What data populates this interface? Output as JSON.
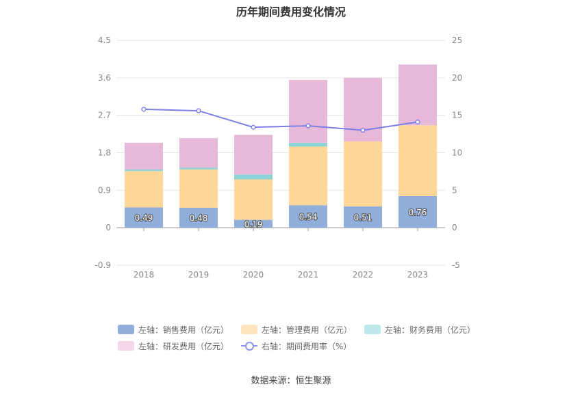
{
  "chart_data": {
    "type": "bar",
    "title": "历年期间费用变化情况",
    "categories": [
      "2018",
      "2019",
      "2020",
      "2021",
      "2022",
      "2023"
    ],
    "left_axis": {
      "ticks": [
        "4.5",
        "3.6",
        "2.7",
        "1.8",
        "0.9",
        "0",
        "-0.9"
      ],
      "ylim": [
        -0.9,
        4.5
      ]
    },
    "right_axis": {
      "ticks": [
        "25",
        "20",
        "15",
        "10",
        "5",
        "0",
        "-5"
      ],
      "ylim": [
        -5,
        25
      ]
    },
    "series": [
      {
        "name": "左轴：销售费用（亿元）",
        "type": "bar",
        "axis": "left",
        "color": "#8faedc",
        "values": [
          0.49,
          0.48,
          0.19,
          0.54,
          0.51,
          0.76
        ],
        "labels": [
          "0.49",
          "0.48",
          "0.19",
          "0.54",
          "0.51",
          "0.76"
        ]
      },
      {
        "name": "左轴：管理费用（亿元）",
        "type": "bar",
        "axis": "left",
        "color": "#ffd898",
        "values": [
          0.87,
          0.92,
          0.97,
          1.41,
          1.56,
          1.7
        ]
      },
      {
        "name": "左轴：财务费用（亿元）",
        "type": "bar",
        "axis": "left",
        "color": "#8ad3d6",
        "values": [
          0.04,
          0.04,
          0.12,
          0.09,
          0.0,
          0.0
        ]
      },
      {
        "name": "左轴：研发费用（亿元）",
        "type": "bar",
        "axis": "left",
        "color": "#e7b8d8",
        "values": [
          0.64,
          0.71,
          0.95,
          1.51,
          1.53,
          1.46
        ]
      },
      {
        "name": "右轴：期间费用率（%）",
        "type": "line",
        "axis": "right",
        "color": "#7b80e8",
        "values": [
          15.8,
          15.6,
          13.4,
          13.6,
          13.0,
          14.1
        ]
      }
    ]
  },
  "legend": {
    "items": [
      {
        "label": "左轴：销售费用（亿元）",
        "color": "#8faedc"
      },
      {
        "label": "左轴：管理费用（亿元）",
        "color": "#ffe5bd"
      },
      {
        "label": "左轴：财务费用（亿元）",
        "color": "#bfe8ea"
      },
      {
        "label": "左轴：研发费用（亿元）",
        "color": "#f3d6ea"
      },
      {
        "label": "右轴：期间费用率（%）",
        "color": "#8c95f0"
      }
    ]
  },
  "source": "数据来源：恒生聚源"
}
